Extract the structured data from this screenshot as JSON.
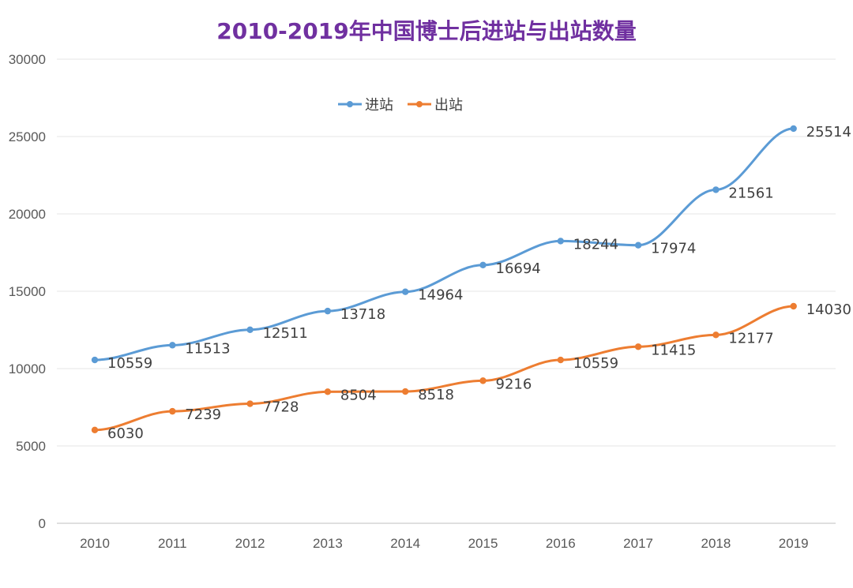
{
  "chart_data": {
    "type": "line",
    "title": "2010-2019年中国博士后进站与出站数量",
    "categories": [
      "2010",
      "2011",
      "2012",
      "2013",
      "2014",
      "2015",
      "2016",
      "2017",
      "2018",
      "2019"
    ],
    "ylim": [
      0,
      30000
    ],
    "yticks": [
      0,
      5000,
      10000,
      15000,
      20000,
      25000,
      30000
    ],
    "grid": true,
    "legend_position": "top-center",
    "series": [
      {
        "name": "进站",
        "color": "#5b9bd5",
        "values": [
          10559,
          11513,
          12511,
          13718,
          14964,
          16694,
          18244,
          17974,
          21561,
          25514
        ],
        "labels": [
          "10559",
          "11513",
          "12511",
          "13718",
          "14964",
          "16694",
          "18244",
          "17974",
          "21561",
          "25514"
        ]
      },
      {
        "name": "出站",
        "color": "#ed7d31",
        "values": [
          6030,
          7239,
          7728,
          8504,
          8518,
          9216,
          10559,
          11415,
          12177,
          14030
        ],
        "labels": [
          "6030",
          "7239",
          "7728",
          "8504",
          "8518",
          "9216",
          "10559",
          "11415",
          "12177",
          "14030"
        ]
      }
    ]
  }
}
